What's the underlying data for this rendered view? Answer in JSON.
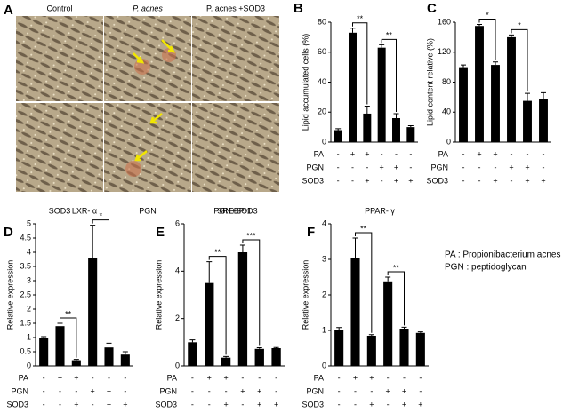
{
  "panel_a": {
    "panel": "A",
    "top_labels": [
      "Control",
      "P. acnes",
      "P. acnes +SOD3"
    ],
    "bottom_labels": [
      "SOD3",
      "PGN",
      "PGN+SOD3"
    ]
  },
  "legend": [
    "PA : Propionibacterium acnes",
    "PGN : peptidoglycan"
  ],
  "chart_data": [
    {
      "type": "bar",
      "panel": "B",
      "ylabel": "Lipid accumulated cells (%)",
      "color": "#000000",
      "values": [
        8,
        73,
        19,
        63,
        16,
        10
      ],
      "errors": [
        1,
        3,
        5,
        2,
        3,
        1
      ],
      "ylim": [
        0,
        80
      ],
      "yticks": [
        0,
        20,
        40,
        60,
        80
      ],
      "conditions": [
        {
          "name": "PA",
          "signs": [
            "-",
            "+",
            "+",
            "-",
            "-",
            "-"
          ]
        },
        {
          "name": "PGN",
          "signs": [
            "-",
            "-",
            "-",
            "+",
            "+",
            "-"
          ]
        },
        {
          "name": "SOD3",
          "signs": [
            "-",
            "-",
            "+",
            "-",
            "+",
            "+"
          ]
        }
      ],
      "significance": [
        "**",
        "**"
      ]
    },
    {
      "type": "bar",
      "panel": "C",
      "ylabel": "Lipid content relative (%)",
      "color": "#000000",
      "values": [
        100,
        155,
        103,
        140,
        55,
        58
      ],
      "errors": [
        3,
        2,
        4,
        3,
        10,
        8
      ],
      "ylim": [
        0,
        160
      ],
      "yticks": [
        0,
        40,
        80,
        120,
        160
      ],
      "conditions": [
        {
          "name": "PA",
          "signs": [
            "-",
            "+",
            "+",
            "-",
            "-",
            "-"
          ]
        },
        {
          "name": "PGN",
          "signs": [
            "-",
            "-",
            "-",
            "+",
            "+",
            "-"
          ]
        },
        {
          "name": "SOD3",
          "signs": [
            "-",
            "-",
            "+",
            "-",
            "+",
            "+"
          ]
        }
      ],
      "significance": [
        "*",
        "*"
      ]
    },
    {
      "type": "bar",
      "panel": "D",
      "title": "LXR- α",
      "ylabel": "Relative expression",
      "color": "#000000",
      "values": [
        1.0,
        1.4,
        0.2,
        3.8,
        0.65,
        0.4
      ],
      "errors": [
        0.03,
        0.1,
        0.03,
        1.15,
        0.15,
        0.1
      ],
      "ylim": [
        0,
        5
      ],
      "yticks": [
        0,
        0.5,
        1,
        1.5,
        2,
        2.5,
        3,
        3.5,
        4,
        4.5,
        5
      ],
      "conditions": [
        {
          "name": "PA",
          "signs": [
            "-",
            "+",
            "+",
            "-",
            "-",
            "-"
          ]
        },
        {
          "name": "PGN",
          "signs": [
            "-",
            "-",
            "-",
            "+",
            "+",
            "-"
          ]
        },
        {
          "name": "SOD3",
          "signs": [
            "-",
            "-",
            "+",
            "-",
            "+",
            "+"
          ]
        }
      ],
      "significance": [
        "**",
        "*"
      ]
    },
    {
      "type": "bar",
      "panel": "E",
      "title": "SREBP-1",
      "ylabel": "Relative expression",
      "color": "#000000",
      "values": [
        1.0,
        3.5,
        0.35,
        4.8,
        0.72,
        0.75
      ],
      "errors": [
        0.1,
        0.9,
        0.05,
        0.3,
        0.05,
        0.03
      ],
      "ylim": [
        0,
        6
      ],
      "yticks": [
        0,
        2,
        4,
        6
      ],
      "conditions": [
        {
          "name": "PA",
          "signs": [
            "-",
            "+",
            "+",
            "-",
            "-",
            "-"
          ]
        },
        {
          "name": "PGN",
          "signs": [
            "-",
            "-",
            "-",
            "+",
            "+",
            "-"
          ]
        },
        {
          "name": "SOD3",
          "signs": [
            "-",
            "-",
            "+",
            "-",
            "+",
            "+"
          ]
        }
      ],
      "significance": [
        "**",
        "***"
      ]
    },
    {
      "type": "bar",
      "panel": "F",
      "title": "PPAR- γ",
      "ylabel": "Relative expression",
      "color": "#000000",
      "values": [
        1.0,
        3.05,
        0.85,
        2.38,
        1.05,
        0.93
      ],
      "errors": [
        0.08,
        0.55,
        0.03,
        0.12,
        0.04,
        0.03
      ],
      "ylim": [
        0,
        4
      ],
      "yticks": [
        0,
        1,
        2,
        3,
        4
      ],
      "conditions": [
        {
          "name": "PA",
          "signs": [
            "-",
            "+",
            "+",
            "-",
            "-",
            "-"
          ]
        },
        {
          "name": "PGN",
          "signs": [
            "-",
            "-",
            "-",
            "+",
            "+",
            "-"
          ]
        },
        {
          "name": "SOD3",
          "signs": [
            "-",
            "-",
            "+",
            "-",
            "+",
            "+"
          ]
        }
      ],
      "significance": [
        "**",
        "**"
      ]
    }
  ]
}
